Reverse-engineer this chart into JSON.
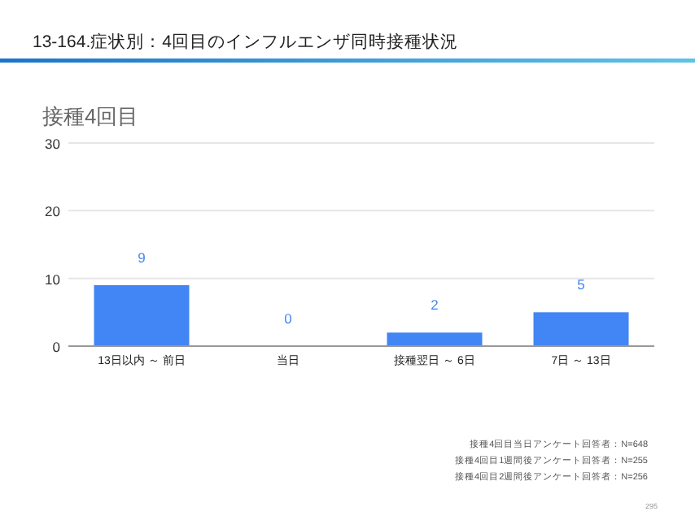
{
  "chart_data": {
    "type": "bar",
    "title": "13-164.症状別：4回目のインフルエンザ同時接種状況",
    "subtitle": "接種4回目",
    "categories": [
      "13日以内 ～ 前日",
      "当日",
      "接種翌日 ～ 6日",
      "7日 ～ 13日"
    ],
    "values": [
      9,
      0,
      2,
      5
    ],
    "color": "#4285f4",
    "ylim": [
      0,
      30
    ],
    "yticks": [
      0,
      10,
      20,
      30
    ],
    "grid": "y",
    "data_labels": true,
    "annotations": [
      "接種4回目当日アンケート回答者：N=648",
      "接種4回目1週間後アンケート回答者：N=255",
      "接種4回目2週間後アンケート回答者：N=256",
      "295"
    ]
  }
}
